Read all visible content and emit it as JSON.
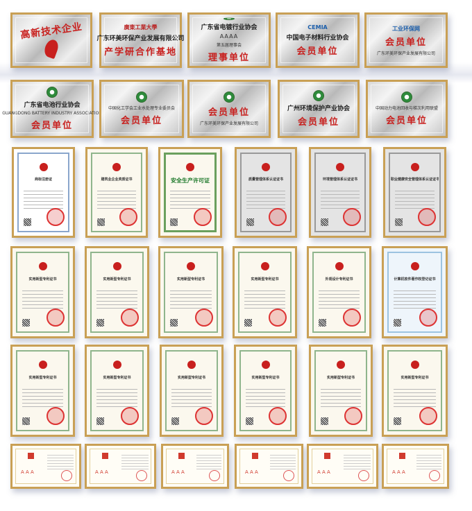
{
  "colors": {
    "frame": "#c9a055",
    "red_text": "#c8201e"
  },
  "plaques": [
    {
      "lines": [
        {
          "t": "redbig",
          "v": "高新技术企业"
        },
        {
          "t": "flame"
        }
      ]
    },
    {
      "lines": [
        {
          "t": "logo",
          "v": "廣東工業大學"
        },
        {
          "t": "title",
          "v": "广东环美环保产业发展有限公司"
        },
        {
          "t": "red",
          "v": "产学研合作基地"
        }
      ]
    },
    {
      "lines": [
        {
          "t": "emblem"
        },
        {
          "t": "title",
          "v": "广东省电镀行业协会"
        },
        {
          "t": "aaaa",
          "v": "AAAA"
        },
        {
          "t": "small",
          "v": "第五届理事会"
        },
        {
          "t": "red",
          "v": "理事单位"
        }
      ]
    },
    {
      "lines": [
        {
          "t": "logoblue",
          "v": "CEMIA"
        },
        {
          "t": "title",
          "v": "中国电子材料行业协会"
        },
        {
          "t": "red",
          "v": "会员单位"
        }
      ]
    },
    {
      "lines": [
        {
          "t": "logoblue",
          "v": "工业环保网"
        },
        {
          "t": "red",
          "v": "会员单位"
        },
        {
          "t": "small",
          "v": "广东环美环保产业发展有限公司"
        }
      ]
    },
    {
      "lines": [
        {
          "t": "emblem"
        },
        {
          "t": "title",
          "v": "广东省电池行业协会"
        },
        {
          "t": "small",
          "v": "GUANGDONG BATTERY INDUSTRY ASSOCIATION"
        },
        {
          "t": "red",
          "v": "会员单位"
        }
      ]
    },
    {
      "lines": [
        {
          "t": "emblem"
        },
        {
          "t": "small",
          "v": "中国化工学会工业水处理专业委员会"
        },
        {
          "t": "red",
          "v": "会员单位"
        }
      ]
    },
    {
      "lines": [
        {
          "t": "emblem"
        },
        {
          "t": "red",
          "v": "会员单位"
        },
        {
          "t": "small",
          "v": "广东环美环保产业发展有限公司"
        }
      ]
    },
    {
      "lines": [
        {
          "t": "emblem"
        },
        {
          "t": "title",
          "v": "广州环境保护产业协会"
        },
        {
          "t": "red",
          "v": "会员单位"
        }
      ]
    },
    {
      "lines": [
        {
          "t": "emblem"
        },
        {
          "t": "small",
          "v": "中国动力电池回收与梯次利用联盟"
        },
        {
          "t": "red",
          "v": "会员单位"
        }
      ]
    }
  ],
  "certificates_row1": [
    {
      "title": "商标注册证",
      "style": "white"
    },
    {
      "title": "建筑业企业资质证书",
      "style": ""
    },
    {
      "title": "安全生产许可证",
      "style": "green"
    },
    {
      "title": "质量管理体系认证证书",
      "style": "grey"
    },
    {
      "title": "环境管理体系认证证书",
      "style": "grey"
    },
    {
      "title": "职业健康安全管理体系认证证书",
      "style": "grey"
    }
  ],
  "certificates_row2": [
    {
      "title": "实用新型专利证书",
      "style": ""
    },
    {
      "title": "实用新型专利证书",
      "style": ""
    },
    {
      "title": "实用新型专利证书",
      "style": ""
    },
    {
      "title": "实用新型专利证书",
      "style": ""
    },
    {
      "title": "外观设计专利证书",
      "style": ""
    },
    {
      "title": "计算机软件著作权登记证书",
      "style": "blue"
    }
  ],
  "certificates_row3": [
    {
      "title": "实用新型专利证书",
      "style": ""
    },
    {
      "title": "实用新型专利证书",
      "style": ""
    },
    {
      "title": "实用新型专利证书",
      "style": ""
    },
    {
      "title": "实用新型专利证书",
      "style": ""
    },
    {
      "title": "实用新型专利证书",
      "style": ""
    },
    {
      "title": "实用新型专利证书",
      "style": ""
    }
  ],
  "credit_certificates": [
    {
      "rating": "AAA"
    },
    {
      "rating": "AAA"
    },
    {
      "rating": "AAA"
    },
    {
      "rating": "AAA"
    },
    {
      "rating": "AAA"
    },
    {
      "rating": "AAA"
    }
  ]
}
